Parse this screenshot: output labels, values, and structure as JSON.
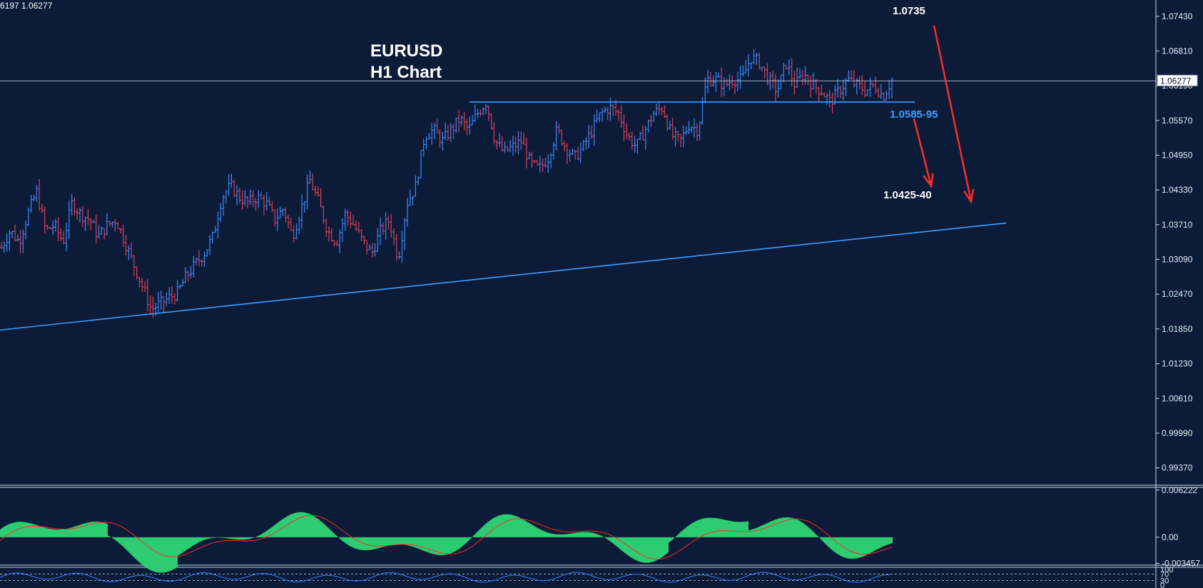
{
  "header": {
    "ohlc_info": "6197 1.06277"
  },
  "chart_data": [
    {
      "type": "ohlc",
      "title": "EURUSD",
      "subtitle": "H1 Chart",
      "ylim": [
        0.9906,
        1.0772
      ],
      "y_ticks": [
        "1.07430",
        "1.06810",
        "1.06190",
        "1.05570",
        "1.04950",
        "1.04330",
        "1.03710",
        "1.03090",
        "1.02470",
        "1.01850",
        "1.01230",
        "1.00610",
        "0.99990",
        "0.99370"
      ],
      "current_price": "1.06277",
      "price_path": [
        1.033,
        1.036,
        1.034,
        1.039,
        1.043,
        1.036,
        1.037,
        1.034,
        1.041,
        1.039,
        1.038,
        1.035,
        1.037,
        1.038,
        1.034,
        1.03,
        1.026,
        1.022,
        1.023,
        1.024,
        1.025,
        1.028,
        1.03,
        1.032,
        1.035,
        1.042,
        1.044,
        1.042,
        1.041,
        1.042,
        1.041,
        1.038,
        1.04,
        1.035,
        1.04,
        1.045,
        1.041,
        1.036,
        1.034,
        1.039,
        1.037,
        1.034,
        1.032,
        1.036,
        1.038,
        1.031,
        1.041,
        1.044,
        1.053,
        1.054,
        1.052,
        1.054,
        1.056,
        1.054,
        1.057,
        1.059,
        1.052,
        1.05,
        1.051,
        1.052,
        1.048,
        1.047,
        1.049,
        1.054,
        1.051,
        1.049,
        1.051,
        1.054,
        1.057,
        1.058,
        1.057,
        1.053,
        1.051,
        1.054,
        1.057,
        1.058,
        1.053,
        1.052,
        1.055,
        1.054,
        1.063,
        1.063,
        1.062,
        1.063,
        1.063,
        1.067,
        1.066,
        1.063,
        1.061,
        1.066,
        1.062,
        1.064,
        1.062,
        1.061,
        1.059,
        1.061,
        1.063,
        1.062,
        1.061,
        1.062,
        1.06,
        1.063
      ],
      "annotations": [
        {
          "text": "1.0735",
          "price": 1.0735
        },
        {
          "text": "1.0585-95",
          "price": 1.059
        },
        {
          "text": "1.0425-40",
          "price": 1.0432
        }
      ],
      "resistance_level": 1.059,
      "trendline": {
        "start": 1.0183,
        "end": 1.0374
      },
      "projections": [
        {
          "from": 1.056,
          "to": 1.044
        },
        {
          "from": 1.065,
          "to": 1.043
        }
      ],
      "colors": {
        "background": "#0b1b38",
        "bull": "#3d8bff",
        "bear": "#e0405a",
        "line": "#3f9dff",
        "arrow": "#ff2a2a"
      }
    },
    {
      "type": "histogram",
      "y_ticks": [
        "0.006222",
        "0.00",
        "-0.003457"
      ],
      "ylim": [
        -0.0035,
        0.0063
      ],
      "colors": {
        "histogram": "#2ecc71",
        "signal": "#ff2a2a"
      }
    },
    {
      "type": "line",
      "y_ticks": [
        "100",
        "70",
        "30",
        "0"
      ],
      "ylim": [
        0,
        100
      ],
      "colors": {
        "line": "#3f7dff"
      }
    }
  ]
}
